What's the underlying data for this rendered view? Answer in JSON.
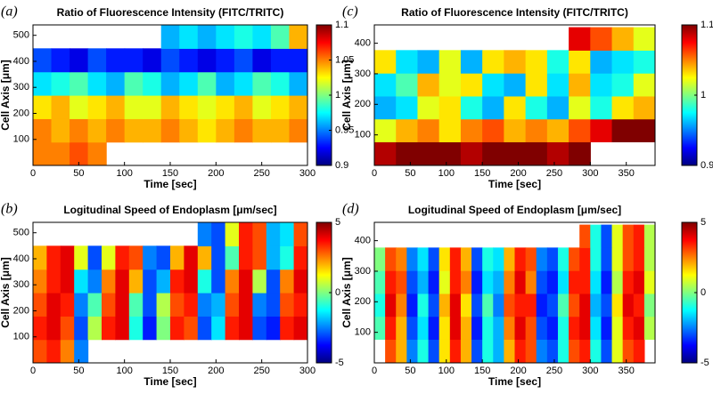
{
  "chart_data": [
    {
      "type": "heatmap",
      "label": "(a)",
      "title": "Ratio of Fluorescence Intensity (FITC/TRITC)",
      "xlabel": "Time [sec]",
      "ylabel": "Cell Axis [μm]",
      "xlim": [
        0,
        300
      ],
      "ylim": [
        0,
        540
      ],
      "xticks": [
        0,
        50,
        100,
        150,
        200,
        250,
        300
      ],
      "yticks": [
        100,
        200,
        300,
        400,
        500
      ],
      "colormap": "jet",
      "x": [
        10,
        30,
        50,
        70,
        90,
        110,
        130,
        150,
        170,
        190,
        210,
        230,
        250,
        270,
        290
      ],
      "y": [
        45,
        135,
        225,
        315,
        405,
        495
      ],
      "z": [
        [
          1.05,
          1.05,
          1.06,
          1.05,
          null,
          null,
          null,
          null,
          null,
          null,
          null,
          null,
          null,
          null,
          null
        ],
        [
          1.05,
          1.04,
          1.05,
          1.04,
          1.05,
          1.04,
          1.04,
          1.05,
          1.04,
          1.03,
          1.04,
          1.05,
          1.04,
          1.04,
          1.05
        ],
        [
          1.03,
          1.04,
          1.02,
          1.03,
          1.04,
          1.02,
          1.02,
          1.04,
          1.03,
          1.02,
          1.03,
          1.04,
          1.02,
          1.03,
          1.04
        ],
        [
          0.97,
          0.98,
          0.99,
          0.97,
          0.96,
          0.99,
          0.98,
          0.96,
          0.97,
          0.99,
          0.96,
          0.97,
          0.99,
          0.98,
          0.96
        ],
        [
          0.94,
          0.93,
          0.92,
          0.94,
          0.93,
          0.93,
          0.92,
          0.94,
          0.93,
          0.92,
          0.93,
          0.94,
          0.92,
          0.93,
          0.93
        ],
        [
          null,
          null,
          null,
          null,
          null,
          null,
          null,
          0.96,
          0.97,
          0.96,
          0.97,
          0.98,
          0.97,
          0.99,
          1.04
        ]
      ],
      "colorbar": {
        "lim": [
          0.9,
          1.1
        ],
        "ticks": [
          0.9,
          0.95,
          1,
          1.05,
          1.1
        ]
      }
    },
    {
      "type": "heatmap",
      "label": "(c)",
      "title": "Ratio of Fluorescence Intensity (FITC/TRITC)",
      "xlabel": "Time [sec]",
      "ylabel": "Cell Axis [μm]",
      "xlim": [
        0,
        390
      ],
      "ylim": [
        0,
        460
      ],
      "xticks": [
        0,
        50,
        100,
        150,
        200,
        250,
        300,
        350
      ],
      "yticks": [
        100,
        200,
        300,
        400
      ],
      "colormap": "jet",
      "x": [
        15,
        45,
        75,
        105,
        135,
        165,
        195,
        225,
        255,
        285,
        315,
        345,
        375
      ],
      "y": [
        40,
        115,
        190,
        265,
        340,
        415
      ],
      "z": [
        [
          1.09,
          1.1,
          1.1,
          1.1,
          1.09,
          1.1,
          1.1,
          1.1,
          1.09,
          1.1,
          null,
          null,
          null
        ],
        [
          1.02,
          1.04,
          1.05,
          1.03,
          1.05,
          1.06,
          1.04,
          1.05,
          1.04,
          1.06,
          1.08,
          1.1,
          1.1
        ],
        [
          0.96,
          0.97,
          1.02,
          1.03,
          0.98,
          0.96,
          1.03,
          0.98,
          0.96,
          1.02,
          0.98,
          1.03,
          1.04
        ],
        [
          0.97,
          0.99,
          1.04,
          1.02,
          1.03,
          0.97,
          0.96,
          1.03,
          0.97,
          1.04,
          0.97,
          0.98,
          1.02
        ],
        [
          1.03,
          0.97,
          0.96,
          1.02,
          0.96,
          1.03,
          1.04,
          1.03,
          0.98,
          1.03,
          0.96,
          0.97,
          0.98
        ],
        [
          null,
          null,
          null,
          null,
          null,
          null,
          null,
          null,
          null,
          1.08,
          1.06,
          1.04,
          1.02
        ]
      ],
      "colorbar": {
        "lim": [
          0.9,
          1.1
        ],
        "ticks": [
          0.9,
          1,
          1.1
        ]
      }
    },
    {
      "type": "heatmap",
      "label": "(b)",
      "title": "Logitudinal Speed of Endoplasm [μm/sec]",
      "xlabel": "Time [sec]",
      "ylabel": "Cell Axis [μm]",
      "xlim": [
        0,
        300
      ],
      "ylim": [
        0,
        540
      ],
      "xticks": [
        0,
        50,
        100,
        150,
        200,
        250,
        300
      ],
      "yticks": [
        100,
        200,
        300,
        400,
        500
      ],
      "colormap": "jet",
      "x": [
        7.5,
        22.5,
        37.5,
        52.5,
        67.5,
        82.5,
        97.5,
        112.5,
        127.5,
        142.5,
        157.5,
        172.5,
        187.5,
        202.5,
        217.5,
        232.5,
        247.5,
        262.5,
        277.5,
        292.5
      ],
      "y": [
        45,
        135,
        225,
        315,
        405,
        495
      ],
      "z": [
        [
          3,
          3.5,
          2.5,
          -2.5,
          null,
          null,
          null,
          null,
          null,
          null,
          null,
          null,
          null,
          null,
          null,
          null,
          null,
          null,
          null,
          null
        ],
        [
          3.5,
          4,
          3,
          -3,
          0.5,
          3.5,
          4,
          -1,
          -3.5,
          0,
          3.5,
          3,
          -3,
          -1.5,
          3.5,
          4,
          -3,
          -3.5,
          3.5,
          4
        ],
        [
          3,
          4,
          3.5,
          -2.5,
          -0.5,
          3,
          4,
          -0.5,
          -3,
          0.5,
          3,
          3.5,
          -2.5,
          -2,
          3,
          4,
          -2.5,
          -3,
          3,
          3.5
        ],
        [
          2.5,
          3.5,
          4,
          -1.5,
          -2.5,
          2.5,
          4,
          2,
          -3,
          -2,
          3.5,
          4,
          -1,
          -3,
          2.5,
          4,
          0.5,
          -3,
          2.5,
          4
        ],
        [
          2,
          3.5,
          4,
          1,
          -3,
          1,
          3.5,
          3,
          -2.5,
          -3,
          2,
          4,
          2,
          -3,
          -0.5,
          3.5,
          3,
          -2,
          -1,
          3.5
        ],
        [
          null,
          null,
          null,
          null,
          null,
          null,
          null,
          null,
          null,
          null,
          null,
          null,
          -2.5,
          -3,
          1,
          3.5,
          3,
          -2,
          -1.5,
          3
        ]
      ],
      "colorbar": {
        "lim": [
          -5,
          5
        ],
        "ticks": [
          -5,
          0,
          5
        ]
      }
    },
    {
      "type": "heatmap",
      "label": "(d)",
      "title": "Logitudinal Speed of Endoplasm [μm/sec]",
      "xlabel": "Time [sec]",
      "ylabel": "Cell Axis [μm]",
      "xlim": [
        0,
        390
      ],
      "ylim": [
        0,
        460
      ],
      "xticks": [
        0,
        50,
        100,
        150,
        200,
        250,
        300,
        350
      ],
      "yticks": [
        100,
        200,
        300,
        400
      ],
      "colormap": "jet",
      "x": [
        7.5,
        22.5,
        37.5,
        52.5,
        67.5,
        82.5,
        97.5,
        112.5,
        127.5,
        142.5,
        157.5,
        172.5,
        187.5,
        202.5,
        217.5,
        232.5,
        247.5,
        262.5,
        277.5,
        292.5,
        307.5,
        322.5,
        337.5,
        352.5,
        367.5,
        382.5
      ],
      "y": [
        40,
        115,
        190,
        265,
        340,
        415
      ],
      "z": [
        [
          null,
          3,
          2,
          -2.5,
          -1,
          -3,
          1.5,
          3.5,
          2,
          -3,
          -1,
          -2,
          2,
          3.5,
          3,
          -2.5,
          -3,
          -1,
          3,
          3.5,
          -1,
          -3,
          1,
          3,
          3.5,
          null
        ],
        [
          -0.5,
          3.5,
          2,
          -3,
          -1.5,
          -3.5,
          1.5,
          4,
          2,
          -3.5,
          -1,
          -2,
          2.5,
          4,
          3,
          -3,
          -3.5,
          -1,
          3.5,
          4,
          -1.5,
          -3.5,
          1,
          3.5,
          4,
          0.5
        ],
        [
          -1,
          4,
          2.5,
          -3.5,
          -1,
          -3,
          2,
          4,
          1.5,
          -3,
          -0.5,
          -2.5,
          3,
          3.5,
          3.5,
          -3.5,
          -3,
          -0.5,
          3,
          4,
          -2,
          -3,
          1.5,
          4,
          3.5,
          0
        ],
        [
          -0.5,
          3.5,
          3,
          -3,
          -2,
          -3.5,
          1,
          3.5,
          2.5,
          -3.5,
          -1.5,
          -2,
          2.5,
          4,
          2.5,
          -3,
          -3.5,
          -1.5,
          3.5,
          3.5,
          -1.5,
          -3.5,
          0.5,
          3.5,
          4,
          1
        ],
        [
          0,
          3,
          2.5,
          -2.5,
          -1.5,
          -3,
          1.5,
          3.5,
          2,
          -3,
          -1,
          -1.5,
          2,
          3.5,
          3,
          -2.5,
          -3,
          -1,
          3,
          3.5,
          -1,
          -3,
          1,
          3,
          3.5,
          0.5
        ],
        [
          null,
          null,
          null,
          null,
          null,
          null,
          null,
          null,
          null,
          null,
          null,
          null,
          null,
          null,
          null,
          null,
          null,
          null,
          null,
          3,
          -1,
          -3,
          1,
          3,
          3.5,
          0.5
        ]
      ],
      "colorbar": {
        "lim": [
          -5,
          5
        ],
        "ticks": [
          -5,
          0,
          5
        ]
      }
    }
  ]
}
